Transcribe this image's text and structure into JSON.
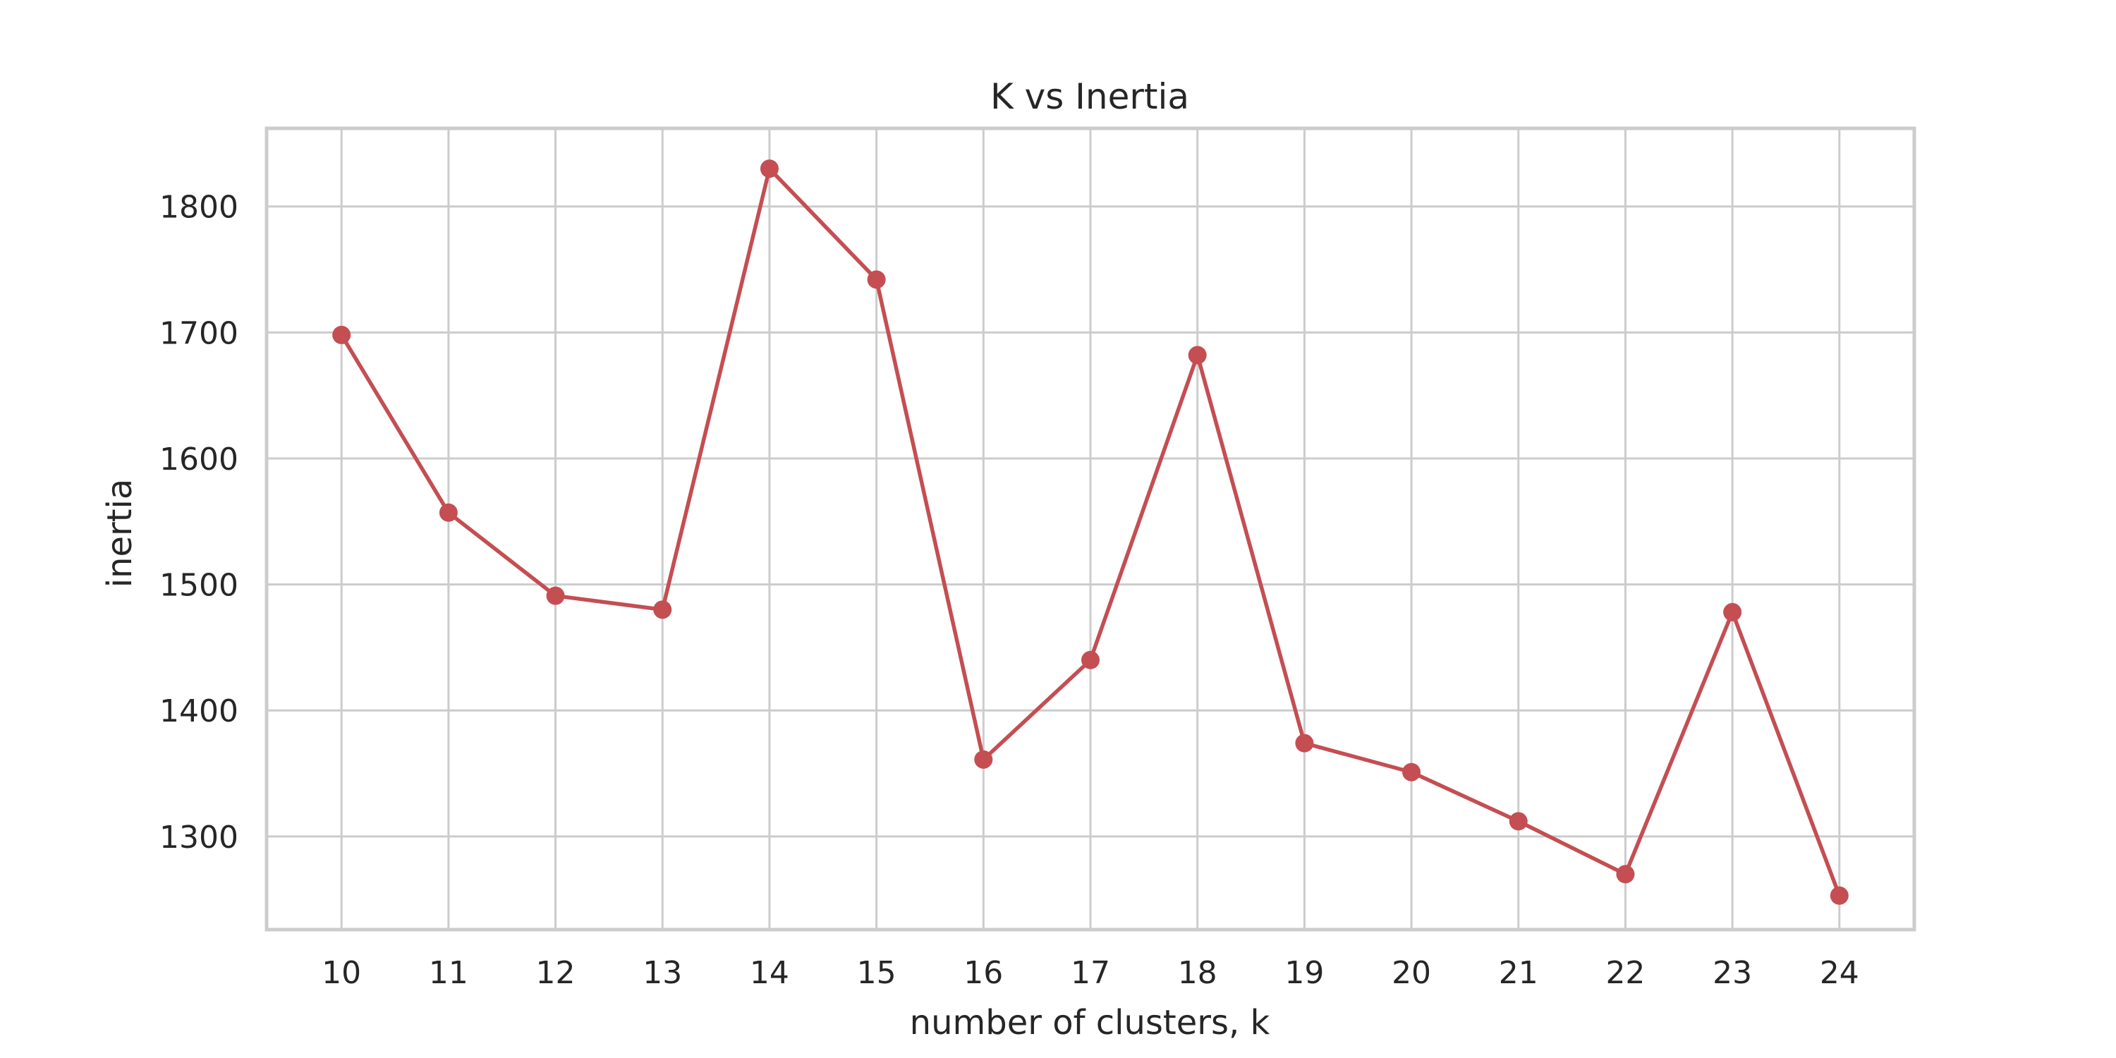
{
  "chart_data": {
    "type": "line",
    "title": "K vs Inertia",
    "xlabel": "number of clusters, k",
    "ylabel": "inertia",
    "x": [
      10,
      11,
      12,
      13,
      14,
      15,
      16,
      17,
      18,
      19,
      20,
      21,
      22,
      23,
      24
    ],
    "series": [
      {
        "color": "#c44e52",
        "values": [
          1698,
          1557,
          1491,
          1480,
          1830,
          1742,
          1361,
          1440,
          1682,
          1374,
          1351,
          1312,
          1270,
          1478,
          1253
        ]
      }
    ],
    "xlim": [
      9.3,
      24.7
    ],
    "ylim": [
      1226,
      1862
    ],
    "yticks": [
      1300,
      1400,
      1500,
      1600,
      1700,
      1800
    ],
    "grid": true,
    "legend": "none",
    "colors": {
      "grid": "#cccccc",
      "text": "#262626",
      "background": "#ffffff"
    }
  }
}
